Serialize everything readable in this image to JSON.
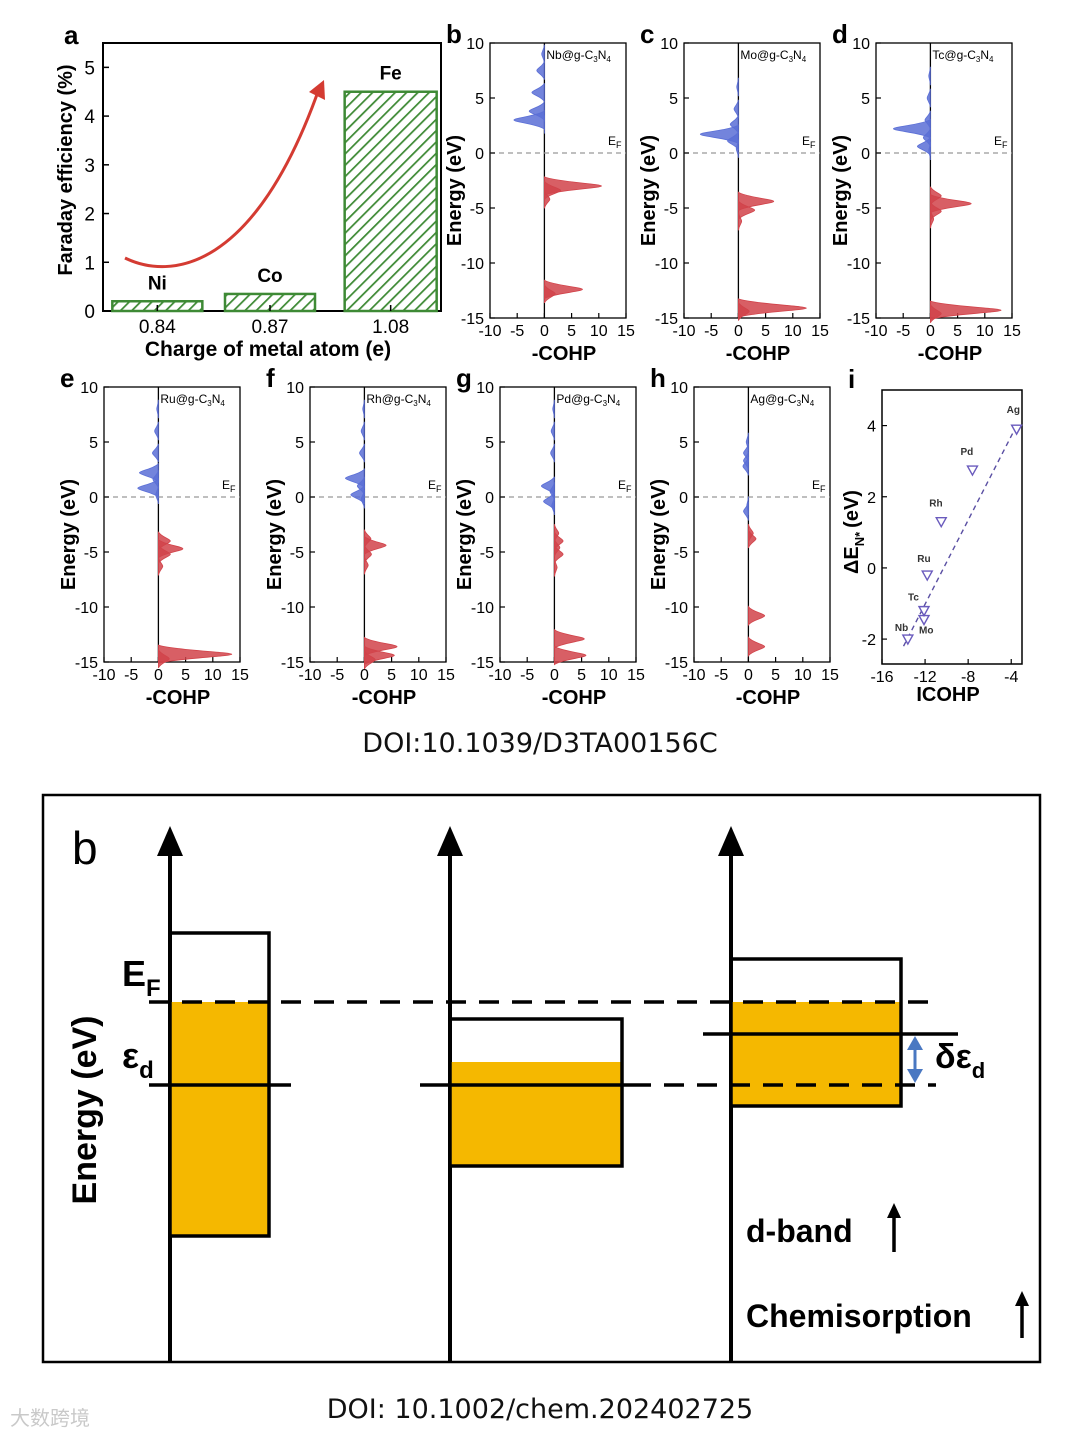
{
  "figure_top": {
    "doi": "DOI:10.1039/D3TA00156C",
    "panel_a": {
      "letter": "a",
      "ylabel": "Faraday efficiency (%)",
      "xlabel": "Charge of metal atom (e)"
    },
    "cohp_panels": [
      {
        "letter": "b",
        "system": "Nb@g-C3N4",
        "metal": "Nb"
      },
      {
        "letter": "c",
        "system": "Mo@g-C3N4",
        "metal": "Mo"
      },
      {
        "letter": "d",
        "system": "Tc@g-C3N4",
        "metal": "Tc"
      },
      {
        "letter": "e",
        "system": "Ru@g-C3N4",
        "metal": "Ru"
      },
      {
        "letter": "f",
        "system": "Rh@g-C3N4",
        "metal": "Rh"
      },
      {
        "letter": "g",
        "system": "Pd@g-C3N4",
        "metal": "Pd"
      },
      {
        "letter": "h",
        "system": "Ag@g-C3N4",
        "metal": "Ag"
      }
    ],
    "cohp_common": {
      "ylabel": "Energy (eV)",
      "xlabel": "-COHP",
      "fermi_label": "E",
      "fermi_sub": "F",
      "x_ticks": [
        "-10",
        "-5",
        "0",
        "5",
        "10",
        "15"
      ],
      "y_ticks": [
        "10",
        "5",
        "0",
        "-5",
        "-10",
        "-15"
      ]
    },
    "panel_i": {
      "letter": "i",
      "xlabel": "ICOHP",
      "ylabel_main": "ΔE",
      "ylabel_sub": "N*",
      "ylabel_unit": "(eV)"
    }
  },
  "chart_data": [
    {
      "type": "bar",
      "title": "",
      "categories": [
        "0.84",
        "0.87",
        "1.08"
      ],
      "bar_labels": [
        "Ni",
        "Co",
        "Fe"
      ],
      "values": [
        0.2,
        0.35,
        4.5
      ],
      "ylim": [
        0,
        5.5
      ],
      "yticks": [
        0,
        1,
        2,
        3,
        4,
        5
      ],
      "xlabel": "Charge of metal atom (e)",
      "ylabel": "Faraday efficiency (%)",
      "color": "#3e8a35"
    },
    {
      "type": "scatter",
      "title": "",
      "xlabel": "ICOHP",
      "ylabel": "ΔE N* (eV)",
      "xlim": [
        -16,
        -3
      ],
      "ylim": [
        -2.7,
        5
      ],
      "xticks": [
        -16,
        -12,
        -8,
        -4
      ],
      "yticks": [
        -2,
        0,
        2,
        4
      ],
      "points": [
        {
          "label": "Nb",
          "x": -13.6,
          "y": -2.0
        },
        {
          "label": "Mo",
          "x": -12.1,
          "y": -1.45
        },
        {
          "label": "Tc",
          "x": -12.1,
          "y": -1.2
        },
        {
          "label": "Ru",
          "x": -11.8,
          "y": -0.2
        },
        {
          "label": "Rh",
          "x": -10.5,
          "y": 1.3
        },
        {
          "label": "Pd",
          "x": -7.6,
          "y": 2.75
        },
        {
          "label": "Ag",
          "x": -3.5,
          "y": 3.9
        }
      ],
      "fit_line": {
        "x": [
          -14,
          -3.5
        ],
        "y": [
          -2.2,
          4.0
        ]
      }
    }
  ],
  "cohp_curves": {
    "Nb": {
      "blue": [
        [
          9,
          0.5
        ],
        [
          7.5,
          1.4
        ],
        [
          5.5,
          2.3
        ],
        [
          3.8,
          2.8
        ],
        [
          3.0,
          5.6
        ],
        [
          2.6,
          0
        ]
      ],
      "red": [
        [
          -3.0,
          10.5
        ],
        [
          -3.4,
          3
        ],
        [
          -4.2,
          1
        ],
        [
          -12.4,
          7
        ],
        [
          -12.8,
          2
        ]
      ]
    },
    "Mo": {
      "blue": [
        [
          6,
          0.3
        ],
        [
          4,
          0.8
        ],
        [
          2.6,
          1.5
        ],
        [
          1.7,
          7.0
        ],
        [
          1.1,
          2
        ],
        [
          0.4,
          0.4
        ]
      ],
      "red": [
        [
          -4.4,
          6.5
        ],
        [
          -5.2,
          3
        ],
        [
          -6.2,
          0.6
        ],
        [
          -14.1,
          12.5
        ],
        [
          -14.4,
          2
        ]
      ]
    },
    "Tc": {
      "blue": [
        [
          7,
          0.3
        ],
        [
          5,
          0.6
        ],
        [
          3,
          1.0
        ],
        [
          2.2,
          6.8
        ],
        [
          1.4,
          1.3
        ],
        [
          0.6,
          2.4
        ],
        [
          0.2,
          0.3
        ]
      ],
      "red": [
        [
          -3.9,
          2
        ],
        [
          -4.6,
          7.5
        ],
        [
          -5.3,
          2
        ],
        [
          -6.0,
          0.6
        ],
        [
          -14.3,
          13
        ],
        [
          -14.6,
          2
        ]
      ]
    },
    "Ru": {
      "blue": [
        [
          8,
          0.3
        ],
        [
          6,
          0.7
        ],
        [
          4,
          1.1
        ],
        [
          2.2,
          3.5
        ],
        [
          1.6,
          1
        ],
        [
          0.8,
          3.8
        ],
        [
          0.2,
          0.5
        ]
      ],
      "red": [
        [
          -4.0,
          2.2
        ],
        [
          -4.7,
          4.5
        ],
        [
          -5.2,
          2.2
        ],
        [
          -6.3,
          0.8
        ],
        [
          -14.3,
          13.5
        ],
        [
          -14.7,
          2
        ]
      ]
    },
    "Rh": {
      "blue": [
        [
          8,
          0.3
        ],
        [
          6,
          0.6
        ],
        [
          4,
          0.9
        ],
        [
          1.7,
          3.5
        ],
        [
          1.0,
          1.3
        ],
        [
          0.2,
          2.5
        ],
        [
          -0.2,
          0.6
        ]
      ],
      "red": [
        [
          -3.8,
          1.2
        ],
        [
          -4.4,
          4.0
        ],
        [
          -5.2,
          1.3
        ],
        [
          -6.2,
          0.7
        ],
        [
          -13.6,
          6
        ],
        [
          -14.4,
          5.5
        ],
        [
          -14.8,
          2
        ]
      ]
    },
    "Pd": {
      "blue": [
        [
          8,
          0.3
        ],
        [
          6,
          0.6
        ],
        [
          4,
          0.7
        ],
        [
          1.0,
          2.4
        ],
        [
          0.5,
          0.8
        ],
        [
          -0.4,
          2.0
        ],
        [
          -0.8,
          0.5
        ]
      ],
      "red": [
        [
          -3.3,
          0.8
        ],
        [
          -4.0,
          1.6
        ],
        [
          -4.6,
          1.0
        ],
        [
          -5.2,
          1.6
        ],
        [
          -6.4,
          0.5
        ],
        [
          -12.9,
          5.5
        ],
        [
          -14.4,
          5.8
        ]
      ]
    },
    "Ag": {
      "blue": [
        [
          5,
          0.4
        ],
        [
          4,
          0.9
        ],
        [
          3.3,
          0.9
        ],
        [
          2.8,
          1.0
        ],
        [
          -0.8,
          0.3
        ],
        [
          -1.3,
          0.9
        ]
      ],
      "red": [
        [
          -3.3,
          0.9
        ],
        [
          -3.8,
          1.4
        ],
        [
          -10.8,
          3.0
        ],
        [
          -13.6,
          3.0
        ]
      ]
    }
  },
  "figure_bottom": {
    "panel_letter": "b",
    "ylabel": "Energy (eV)",
    "ef_label_main": "E",
    "ef_label_sub": "F",
    "eps_label_main": "ε",
    "eps_label_sub": "d",
    "delta_label_main": "δε",
    "delta_label_sub": "d",
    "dband_label": "d-band",
    "chemisorption_label": "Chemisorption",
    "fill_color": "#f5b800",
    "arrow_color": "#4a78c2",
    "doi": "DOI: 10.1002/chem.202402725"
  },
  "watermark": "大数跨境"
}
